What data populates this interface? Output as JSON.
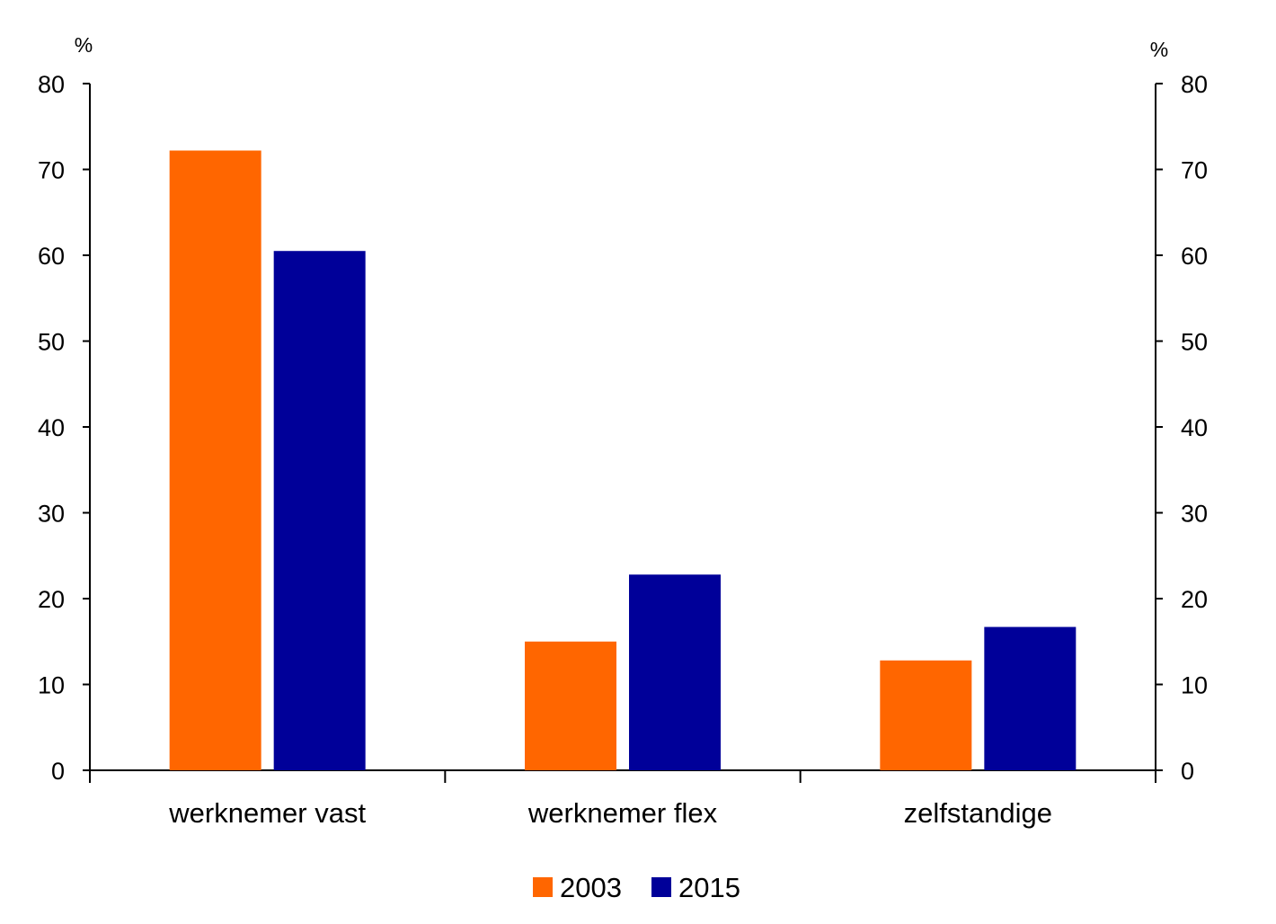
{
  "chart_data": {
    "type": "bar",
    "categories": [
      "werknemer vast",
      "werknemer flex",
      "zelfstandige"
    ],
    "series": [
      {
        "name": "2003",
        "color": "#FF6600",
        "values": [
          72.2,
          15.0,
          12.8
        ]
      },
      {
        "name": "2015",
        "color": "#000099",
        "values": [
          60.5,
          22.8,
          16.7
        ]
      }
    ],
    "ylim": [
      0,
      80
    ],
    "yticks": [
      "0",
      "10",
      "20",
      "30",
      "40",
      "50",
      "60",
      "70",
      "80"
    ],
    "ylabel_left": "%",
    "ylabel_right": "%",
    "secondary_axis": true,
    "grid": false,
    "legend_position": "bottom-center"
  }
}
